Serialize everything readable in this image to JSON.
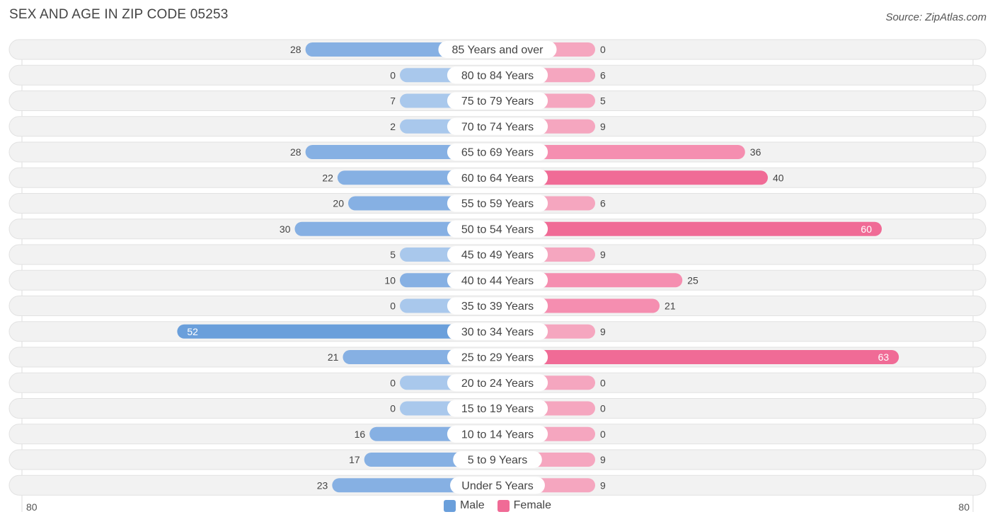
{
  "chart_data": {
    "type": "bar",
    "title": "SEX AND AGE IN ZIP CODE 05253",
    "source": "Source: ZipAtlas.com",
    "categories": [
      "85 Years and over",
      "80 to 84 Years",
      "75 to 79 Years",
      "70 to 74 Years",
      "65 to 69 Years",
      "60 to 64 Years",
      "55 to 59 Years",
      "50 to 54 Years",
      "45 to 49 Years",
      "40 to 44 Years",
      "35 to 39 Years",
      "30 to 34 Years",
      "25 to 29 Years",
      "20 to 24 Years",
      "15 to 19 Years",
      "10 to 14 Years",
      "5 to 9 Years",
      "Under 5 Years"
    ],
    "series": [
      {
        "name": "Male",
        "values": [
          28,
          0,
          7,
          2,
          28,
          22,
          20,
          30,
          5,
          10,
          0,
          52,
          21,
          0,
          0,
          16,
          17,
          23
        ]
      },
      {
        "name": "Female",
        "values": [
          0,
          6,
          5,
          9,
          36,
          40,
          6,
          60,
          9,
          25,
          21,
          9,
          63,
          0,
          0,
          0,
          9,
          9
        ]
      }
    ],
    "axis_left_label": "80",
    "axis_right_label": "80",
    "xlim": [
      -80,
      80
    ],
    "legend_position": "bottom-center",
    "colors": {
      "male_strong": "#6a9fdb",
      "male_light": "#a9c8ec",
      "female_strong": "#f06b96",
      "female_light": "#f5a6bf",
      "row_bg": "#efefef"
    }
  }
}
